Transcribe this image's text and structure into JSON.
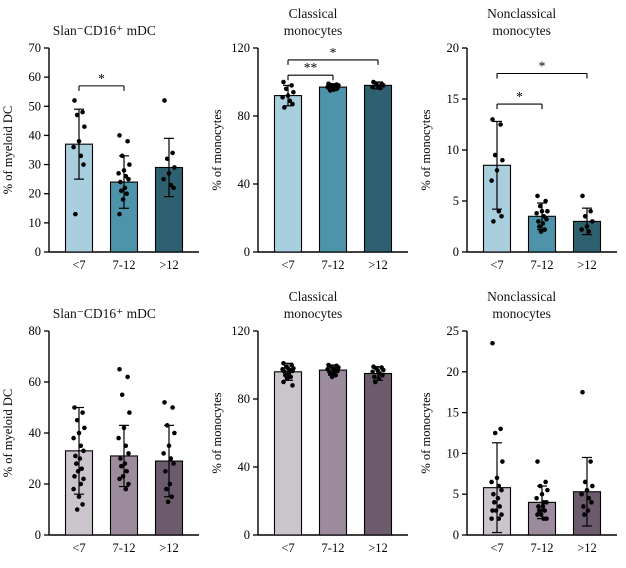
{
  "figure": {
    "background": "#ffffff",
    "axis_color": "#000000",
    "dot_color": "#000000",
    "bar_stroke": "#000000"
  },
  "chart_data": [
    {
      "type": "bar",
      "title": "Slan⁻CD16⁺ mDC",
      "ylabel": "% of myeloid DC",
      "categories": [
        "<7",
        "7-12",
        ">12"
      ],
      "values": [
        37,
        24,
        29
      ],
      "errors": [
        12,
        9,
        10
      ],
      "ylim": [
        0,
        70
      ],
      "yticks": [
        0,
        10,
        20,
        30,
        40,
        50,
        60,
        70
      ],
      "bar_colors": [
        "#a9cedd",
        "#4d93a9",
        "#2e616f"
      ],
      "points": [
        [
          52,
          48,
          47,
          43,
          38,
          36,
          33,
          30,
          13
        ],
        [
          40,
          38,
          33,
          30,
          28,
          27,
          26,
          25,
          24,
          22,
          21,
          20,
          18,
          13
        ],
        [
          52,
          34,
          32,
          29,
          27,
          25,
          23,
          22
        ]
      ],
      "significance": [
        {
          "from": 0,
          "to": 1,
          "y": 57,
          "label": "*"
        }
      ]
    },
    {
      "type": "bar",
      "title": "Classical\nmonocytes",
      "ylabel": "% of monocytes",
      "categories": [
        "<7",
        "7-12",
        ">12"
      ],
      "values": [
        92,
        97,
        98
      ],
      "errors": [
        6,
        2,
        2
      ],
      "ylim": [
        0,
        120
      ],
      "yticks": [
        0,
        40,
        80,
        120
      ],
      "bar_colors": [
        "#a9cedd",
        "#4d93a9",
        "#2e616f"
      ],
      "points": [
        [
          100,
          98,
          96,
          94,
          92,
          91,
          89,
          87,
          85
        ],
        [
          99,
          98.5,
          98,
          98,
          97.5,
          97,
          97,
          96.5,
          96,
          95.5,
          95
        ],
        [
          100,
          99,
          98.5,
          98,
          97.5,
          97,
          96.5
        ]
      ],
      "significance": [
        {
          "from": 0,
          "to": 1,
          "y": 104,
          "label": "**"
        },
        {
          "from": 0,
          "to": 2,
          "y": 113,
          "label": "*"
        }
      ]
    },
    {
      "type": "bar",
      "title": "Nonclassical\nmonocytes",
      "ylabel": "% of monocytes",
      "categories": [
        "<7",
        "7-12",
        ">12"
      ],
      "values": [
        8.5,
        3.5,
        3
      ],
      "errors": [
        4.3,
        1.3,
        1.3
      ],
      "ylim": [
        0,
        20
      ],
      "yticks": [
        0,
        5,
        10,
        15,
        20
      ],
      "bar_colors": [
        "#a9cedd",
        "#4d93a9",
        "#2e616f"
      ],
      "points": [
        [
          13,
          12.5,
          9.5,
          9,
          8,
          7,
          4,
          3.5,
          3
        ],
        [
          5.5,
          5,
          4.5,
          4,
          4,
          3.8,
          3.5,
          3.2,
          3,
          2.8,
          2.5,
          2.2,
          2
        ],
        [
          5.5,
          4,
          3.5,
          3,
          2.5,
          2.2,
          2
        ]
      ],
      "significance": [
        {
          "from": 0,
          "to": 1,
          "y": 14.5,
          "label": "*"
        },
        {
          "from": 0,
          "to": 2,
          "y": 17.5,
          "label": "*"
        }
      ]
    },
    {
      "type": "bar",
      "title": "Slan⁻CD16⁺ mDC",
      "ylabel": "% of myeloid DC",
      "categories": [
        "<7",
        "7-12",
        ">12"
      ],
      "values": [
        33,
        31,
        29
      ],
      "errors": [
        17,
        12,
        14
      ],
      "ylim": [
        0,
        80
      ],
      "yticks": [
        0,
        20,
        40,
        60,
        80
      ],
      "bar_colors": [
        "#cbc4cd",
        "#9c8b9d",
        "#6c5a6d"
      ],
      "points": [
        [
          50,
          48,
          45,
          42,
          40,
          38,
          35,
          33,
          31,
          30,
          28,
          26,
          25,
          23,
          22,
          20,
          18,
          15,
          12,
          10
        ],
        [
          65,
          62,
          55,
          48,
          42,
          38,
          35,
          32,
          30,
          28,
          27,
          25,
          23,
          22,
          20,
          18
        ],
        [
          52,
          50,
          43,
          40,
          35,
          32,
          30,
          28,
          25,
          20,
          18,
          15,
          13
        ]
      ],
      "significance": []
    },
    {
      "type": "bar",
      "title": "Classical\nmonocytes",
      "ylabel": "% of monocytes",
      "categories": [
        "<7",
        "7-12",
        ">12"
      ],
      "values": [
        96,
        97,
        95
      ],
      "errors": [
        5,
        3,
        4
      ],
      "ylim": [
        0,
        120
      ],
      "yticks": [
        0,
        40,
        80,
        120
      ],
      "bar_colors": [
        "#cbc4cd",
        "#9c8b9d",
        "#6c5a6d"
      ],
      "points": [
        [
          101,
          100,
          99,
          98,
          98,
          97.5,
          97,
          96.5,
          96,
          95,
          94,
          93,
          92,
          90,
          88
        ],
        [
          100,
          99.5,
          99,
          98.5,
          98,
          97.5,
          97,
          96.5,
          96,
          95.5,
          95,
          94,
          93
        ],
        [
          99,
          98.5,
          98,
          97,
          96.5,
          96,
          95,
          94,
          93,
          92,
          90
        ]
      ],
      "significance": []
    },
    {
      "type": "bar",
      "title": "Nonclassical\nmonocytes",
      "ylabel": "% of monocytes",
      "categories": [
        "<7",
        "7-12",
        ">12"
      ],
      "values": [
        5.8,
        4,
        5.3
      ],
      "errors": [
        5.5,
        2,
        4.2
      ],
      "ylim": [
        0,
        25
      ],
      "yticks": [
        0,
        5,
        10,
        15,
        20,
        25
      ],
      "bar_colors": [
        "#cbc4cd",
        "#9c8b9d",
        "#6c5a6d"
      ],
      "points": [
        [
          23.5,
          13,
          12.5,
          9,
          7,
          6.5,
          6,
          5.5,
          5,
          4.5,
          4,
          3.5,
          3,
          3,
          2.5,
          2,
          2
        ],
        [
          9,
          6.5,
          6,
          5.5,
          5,
          4.5,
          4,
          4,
          3.5,
          3.5,
          3,
          3,
          2.5,
          2.5,
          2,
          2
        ],
        [
          17.5,
          9,
          6.5,
          6,
          5.5,
          5,
          4.5,
          4,
          3.5,
          3,
          2.5
        ]
      ],
      "significance": []
    }
  ]
}
